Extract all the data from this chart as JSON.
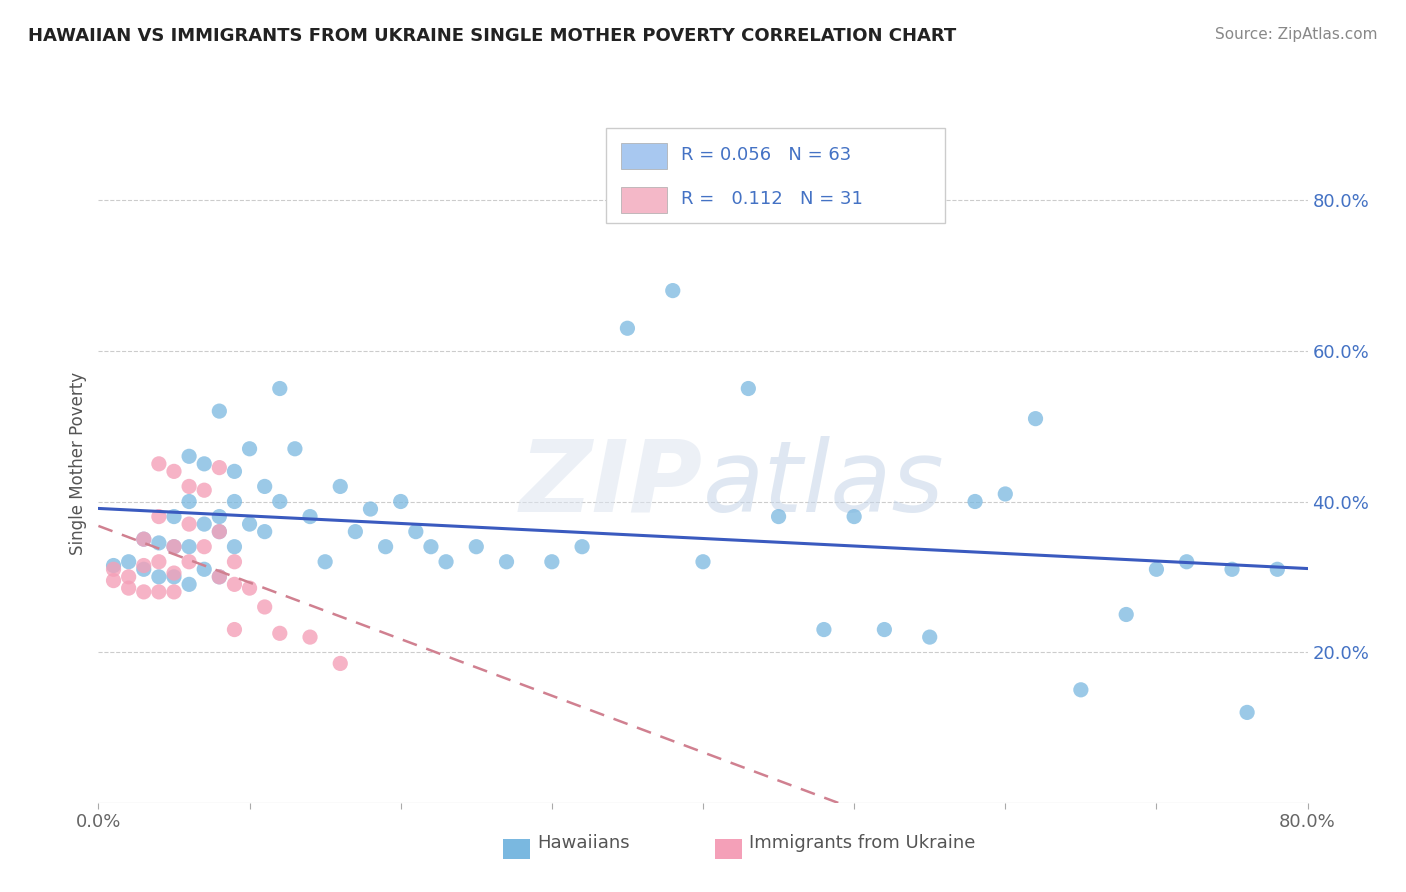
{
  "title": "HAWAIIAN VS IMMIGRANTS FROM UKRAINE SINGLE MOTHER POVERTY CORRELATION CHART",
  "source": "Source: ZipAtlas.com",
  "ylabel": "Single Mother Poverty",
  "xmin": 0.0,
  "xmax": 0.8,
  "ymin": 0.0,
  "ymax": 0.9,
  "legend_items": [
    {
      "color": "#a8c8f0",
      "R": "0.056",
      "N": "63"
    },
    {
      "color": "#f4b8c8",
      "R": "0.112",
      "N": "31"
    }
  ],
  "hawaiians_color": "#7ab8e0",
  "ukraine_color": "#f4a0b8",
  "trendline_hawaiians_color": "#3a5abf",
  "trendline_ukraine_color": "#d08090",
  "watermark": "ZIPatlas",
  "background_color": "#ffffff",
  "hawaiians_x": [
    0.01,
    0.02,
    0.03,
    0.03,
    0.04,
    0.04,
    0.05,
    0.05,
    0.05,
    0.06,
    0.06,
    0.06,
    0.06,
    0.07,
    0.07,
    0.07,
    0.08,
    0.08,
    0.08,
    0.08,
    0.09,
    0.09,
    0.09,
    0.1,
    0.1,
    0.11,
    0.11,
    0.12,
    0.12,
    0.13,
    0.14,
    0.15,
    0.16,
    0.17,
    0.18,
    0.19,
    0.2,
    0.21,
    0.22,
    0.23,
    0.25,
    0.27,
    0.3,
    0.32,
    0.35,
    0.38,
    0.4,
    0.43,
    0.45,
    0.48,
    0.5,
    0.52,
    0.55,
    0.58,
    0.6,
    0.62,
    0.65,
    0.68,
    0.7,
    0.72,
    0.75,
    0.76,
    0.78
  ],
  "hawaiians_y": [
    0.315,
    0.32,
    0.35,
    0.31,
    0.345,
    0.3,
    0.38,
    0.34,
    0.3,
    0.46,
    0.4,
    0.34,
    0.29,
    0.45,
    0.37,
    0.31,
    0.52,
    0.38,
    0.36,
    0.3,
    0.44,
    0.4,
    0.34,
    0.47,
    0.37,
    0.42,
    0.36,
    0.55,
    0.4,
    0.47,
    0.38,
    0.32,
    0.42,
    0.36,
    0.39,
    0.34,
    0.4,
    0.36,
    0.34,
    0.32,
    0.34,
    0.32,
    0.32,
    0.34,
    0.63,
    0.68,
    0.32,
    0.55,
    0.38,
    0.23,
    0.38,
    0.23,
    0.22,
    0.4,
    0.41,
    0.51,
    0.15,
    0.25,
    0.31,
    0.32,
    0.31,
    0.12,
    0.31
  ],
  "ukraine_x": [
    0.01,
    0.01,
    0.02,
    0.02,
    0.03,
    0.03,
    0.03,
    0.04,
    0.04,
    0.04,
    0.04,
    0.05,
    0.05,
    0.05,
    0.05,
    0.06,
    0.06,
    0.06,
    0.07,
    0.07,
    0.08,
    0.08,
    0.08,
    0.09,
    0.09,
    0.09,
    0.1,
    0.11,
    0.12,
    0.14,
    0.16
  ],
  "ukraine_y": [
    0.295,
    0.31,
    0.3,
    0.285,
    0.315,
    0.35,
    0.28,
    0.38,
    0.32,
    0.28,
    0.45,
    0.34,
    0.305,
    0.28,
    0.44,
    0.37,
    0.32,
    0.42,
    0.415,
    0.34,
    0.445,
    0.36,
    0.3,
    0.32,
    0.29,
    0.23,
    0.285,
    0.26,
    0.225,
    0.22,
    0.185
  ]
}
